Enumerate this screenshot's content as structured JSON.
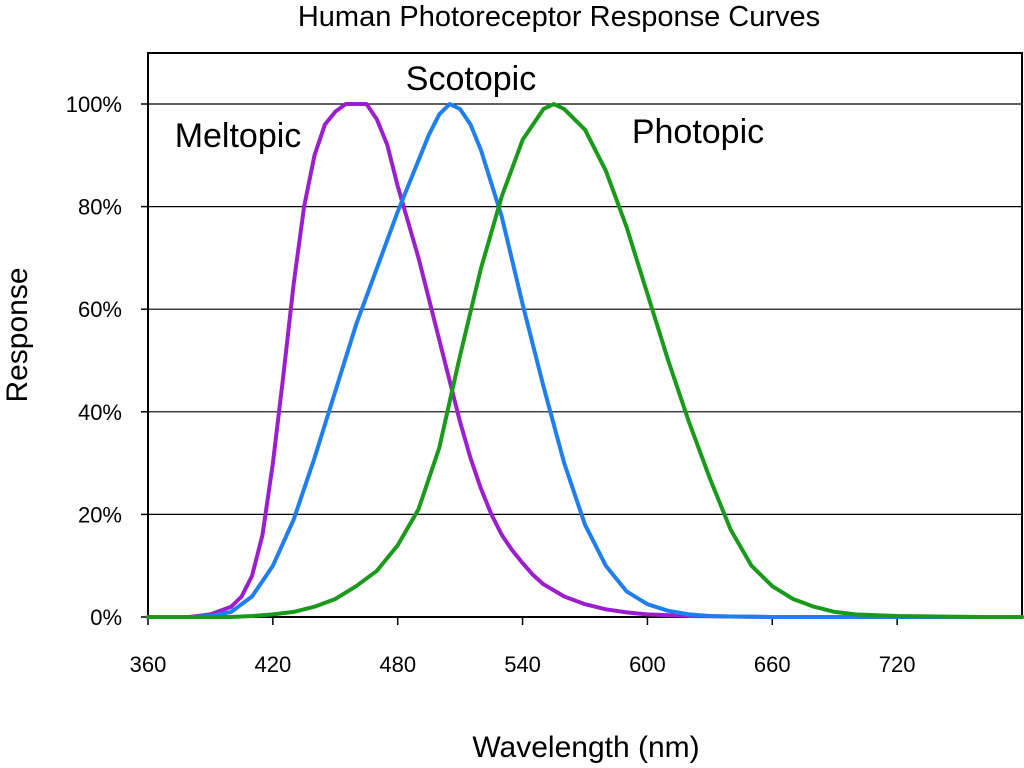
{
  "chart_data": {
    "type": "line",
    "title": "Human Photoreceptor Response Curves",
    "xlabel": "Wavelength (nm)",
    "ylabel": "Response",
    "xlim": [
      360,
      780
    ],
    "ylim": [
      0,
      100
    ],
    "xticks": [
      360,
      420,
      480,
      540,
      600,
      660,
      720
    ],
    "xtick_labels": [
      "360",
      "420",
      "480",
      "540",
      "600",
      "660",
      "720"
    ],
    "yticks": [
      0,
      20,
      40,
      60,
      80,
      100
    ],
    "ytick_labels": [
      "0%",
      "20%",
      "40%",
      "60%",
      "80%",
      "100%"
    ],
    "grid": "horizontal",
    "series": [
      {
        "name": "Meltopic",
        "color": "#9c1fcf",
        "x": [
          360,
          380,
          390,
          400,
          405,
          410,
          415,
          420,
          425,
          430,
          435,
          440,
          445,
          450,
          455,
          460,
          465,
          470,
          475,
          480,
          485,
          490,
          495,
          500,
          505,
          510,
          515,
          520,
          525,
          530,
          535,
          540,
          545,
          550,
          560,
          570,
          580,
          590,
          600,
          620,
          640,
          660,
          700,
          780
        ],
        "y": [
          0,
          0,
          0.5,
          2,
          4,
          8,
          16,
          30,
          47,
          65,
          80,
          90,
          96,
          98.5,
          100,
          100,
          100,
          97,
          92,
          84,
          77,
          70,
          62,
          54,
          46,
          38,
          31,
          25,
          20,
          16,
          13,
          10.5,
          8.2,
          6.4,
          4,
          2.5,
          1.5,
          0.9,
          0.5,
          0.2,
          0.1,
          0,
          0,
          0
        ]
      },
      {
        "name": "Scotopic",
        "color": "#1f7ef0",
        "x": [
          360,
          380,
          390,
          400,
          410,
          420,
          430,
          440,
          450,
          460,
          470,
          480,
          490,
          495,
          500,
          505,
          510,
          515,
          520,
          530,
          540,
          550,
          560,
          570,
          580,
          590,
          600,
          610,
          620,
          630,
          640,
          660,
          700,
          780
        ],
        "y": [
          0,
          0,
          0.2,
          1,
          4,
          10,
          19,
          31,
          44,
          57,
          68,
          79,
          89,
          94,
          98,
          100,
          99,
          96,
          91,
          78,
          61,
          45,
          30,
          18,
          10,
          5,
          2.5,
          1.2,
          0.5,
          0.2,
          0.1,
          0,
          0,
          0
        ]
      },
      {
        "name": "Photopic",
        "color": "#1a9a1a",
        "x": [
          360,
          380,
          400,
          410,
          420,
          430,
          440,
          450,
          460,
          470,
          480,
          490,
          500,
          505,
          510,
          520,
          530,
          540,
          550,
          555,
          560,
          570,
          580,
          590,
          600,
          610,
          620,
          630,
          640,
          650,
          660,
          670,
          680,
          690,
          700,
          720,
          740,
          760,
          780
        ],
        "y": [
          0,
          0,
          0,
          0.2,
          0.5,
          1,
          2,
          3.5,
          6,
          9,
          14,
          21,
          33,
          42,
          51,
          68,
          82,
          93,
          99,
          100,
          99,
          95,
          87,
          76,
          63,
          50,
          38,
          27,
          17,
          10,
          6,
          3.5,
          2,
          1,
          0.5,
          0.2,
          0.1,
          0,
          0
        ]
      }
    ],
    "annotations": [
      "Meltopic",
      "Scotopic",
      "Photopic"
    ]
  }
}
